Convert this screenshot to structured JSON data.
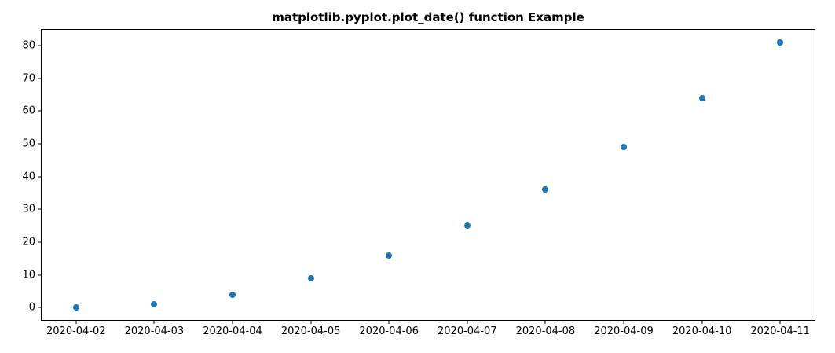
{
  "title": "matplotlib.pyplot.plot_date() function Example",
  "colors": {
    "marker": "#1f77b4",
    "spine": "#000000",
    "text": "#000000",
    "background": "#ffffff"
  },
  "chart_data": {
    "type": "scatter",
    "title": "matplotlib.pyplot.plot_date() function Example",
    "x": [
      "2020-04-02",
      "2020-04-03",
      "2020-04-04",
      "2020-04-05",
      "2020-04-06",
      "2020-04-07",
      "2020-04-08",
      "2020-04-09",
      "2020-04-10",
      "2020-04-11"
    ],
    "y": [
      0,
      1,
      4,
      9,
      16,
      25,
      36,
      49,
      64,
      81
    ],
    "xlabel": "",
    "ylabel": "",
    "y_ticks": [
      0,
      10,
      20,
      30,
      40,
      50,
      60,
      70,
      80
    ],
    "ylim": [
      -4.05,
      85.05
    ],
    "x_index_lim": [
      -0.45,
      9.45
    ],
    "grid": false,
    "legend": null,
    "marker": "circle",
    "marker_size_px": 8
  }
}
